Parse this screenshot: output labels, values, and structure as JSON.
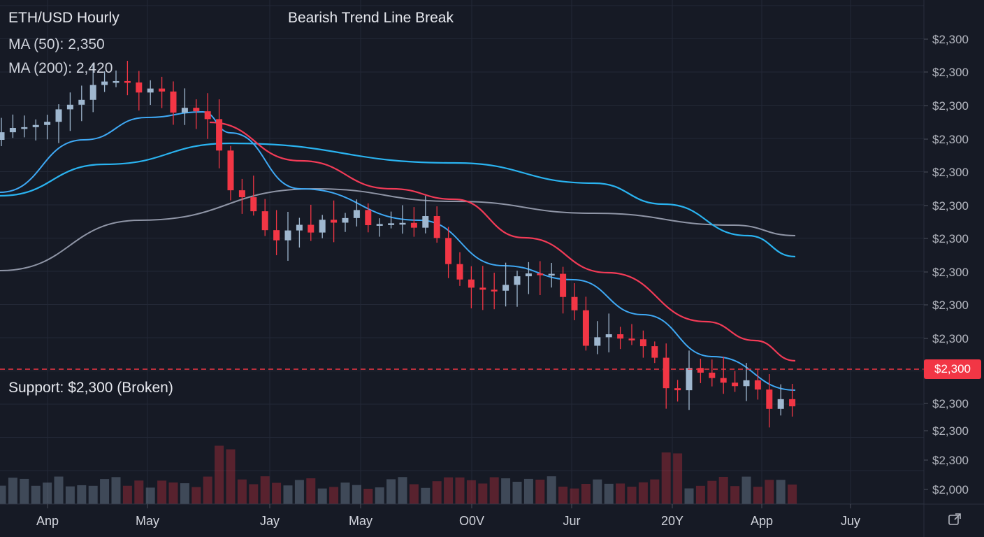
{
  "chart_data": {
    "type": "candlestick",
    "title": "Bearish Trend Line Break",
    "symbol": "ETH/USD Hourly",
    "indicators": {
      "ma50_label": "MA (50): 2,350",
      "ma200_label": "MA (200): 2,420"
    },
    "support": {
      "label": "Support: $2,300 (Broken)",
      "badge": "$2,300"
    },
    "y_axis": {
      "tick_labels": [
        "$2,300",
        "$2,300",
        "$2,300",
        "$2,300",
        "$2,300",
        "$2,300",
        "$2,300",
        "$2,300",
        "$2,300",
        "$2,300",
        "$2,300",
        "$2,300",
        "$2,300",
        "$2,000"
      ]
    },
    "x_axis": {
      "tick_labels": [
        "Anp",
        "May",
        "Jay",
        "May",
        "O0V",
        "Jur",
        "20Y",
        "App",
        "Juy"
      ]
    },
    "grid": true,
    "colors": {
      "background": "#161a25",
      "up": "#9fb7cf",
      "down": "#f23645",
      "ma_fast": "#3fa9f5",
      "ma_red": "#f23b57",
      "ma_slow": "#2ab3f0",
      "ma_gray": "#8f95a6",
      "support": "#f23645"
    }
  },
  "icons": {
    "settings": "screenshot-icon"
  }
}
